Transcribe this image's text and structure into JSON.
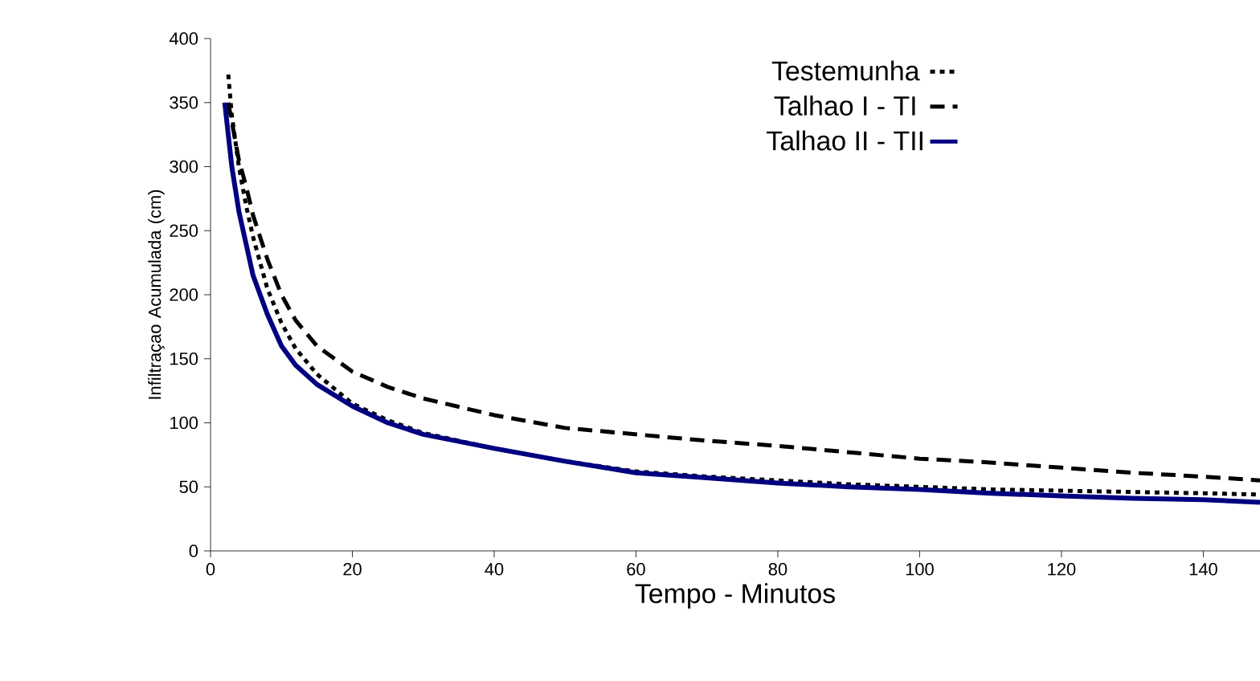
{
  "chart_data": {
    "type": "line",
    "xlabel": "Tempo - Minutos",
    "ylabel": "Infiltraçao Acumulada (cm)",
    "xlim": [
      0,
      148
    ],
    "xticks": [
      0,
      20,
      40,
      60,
      80,
      100,
      120,
      140
    ],
    "ylim": [
      0,
      400
    ],
    "yticks": [
      0,
      50,
      100,
      150,
      200,
      250,
      300,
      350,
      400
    ],
    "legend": "top",
    "marker": "none",
    "grid": false,
    "series": [
      {
        "name": "Testemunha",
        "color": "#000000",
        "line_style": "dotted",
        "x": [
          2.5,
          3,
          4,
          5,
          6,
          8,
          10,
          12,
          15,
          20,
          25,
          30,
          40,
          50,
          60,
          70,
          80,
          90,
          100,
          110,
          120,
          130,
          140,
          148
        ],
        "values": [
          372,
          340,
          300,
          270,
          245,
          205,
          178,
          158,
          138,
          115,
          102,
          92,
          80,
          70,
          62,
          58,
          55,
          52,
          50,
          48,
          47,
          46,
          45,
          44
        ]
      },
      {
        "name": "Talhao I - TI",
        "color": "#000000",
        "line_style": "dashed",
        "x": [
          2.5,
          3,
          4,
          5,
          6,
          8,
          10,
          12,
          15,
          20,
          25,
          30,
          40,
          50,
          60,
          70,
          80,
          90,
          100,
          110,
          120,
          130,
          140,
          148
        ],
        "values": [
          350,
          335,
          305,
          285,
          262,
          228,
          200,
          180,
          160,
          140,
          128,
          119,
          106,
          96,
          91,
          86,
          82,
          77,
          72,
          69,
          65,
          61,
          58,
          55
        ]
      },
      {
        "name": "Talhao II - TII",
        "color": "#000080",
        "line_style": "solid",
        "x": [
          2,
          3,
          4,
          5,
          6,
          8,
          10,
          12,
          15,
          20,
          25,
          30,
          40,
          50,
          60,
          70,
          80,
          90,
          100,
          110,
          120,
          130,
          140,
          148
        ],
        "values": [
          350,
          300,
          265,
          240,
          215,
          185,
          160,
          145,
          130,
          113,
          100,
          91,
          80,
          70,
          61,
          57,
          53,
          50,
          48,
          45,
          43,
          41,
          40,
          38
        ]
      }
    ]
  }
}
